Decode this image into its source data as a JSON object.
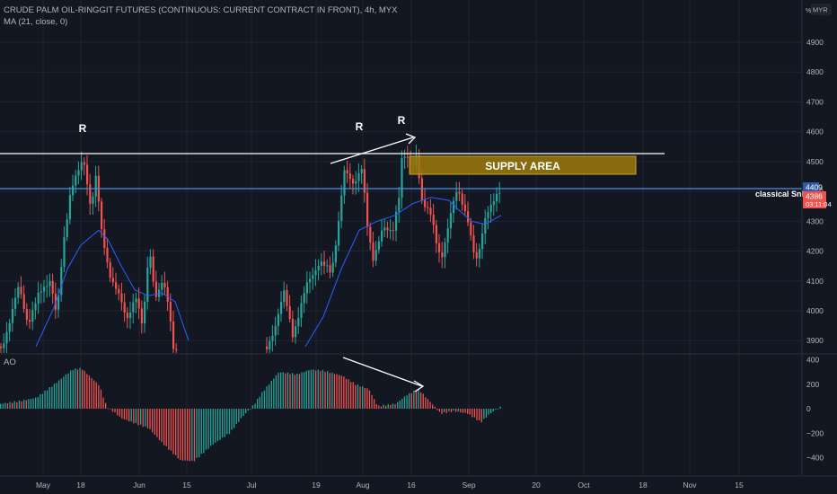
{
  "header": {
    "title": "CRUDE PALM OIL-RINGGIT FUTURES (CONTINUOUS: CURRENT CONTRACT IN FRONT), 4h, MYX",
    "indicator": "MA (21, close, 0)",
    "currency": "MYR",
    "scale_mark": "%"
  },
  "ao_label": "AO",
  "price_axis": {
    "ticks": [
      "4900",
      "4800",
      "4700",
      "4600",
      "4500",
      "4400",
      "4300",
      "4200",
      "4100",
      "4000",
      "3900"
    ]
  },
  "ao_axis": {
    "ticks": [
      "400",
      "200",
      "0",
      "−200",
      "−400"
    ]
  },
  "time_axis": {
    "ticks": [
      "May",
      "18",
      "Jun",
      "15",
      "Jul",
      "19",
      "Aug",
      "16",
      "Sep",
      "20",
      "Oct",
      "18",
      "Nov",
      "15"
    ]
  },
  "price_tags": {
    "line_level": "4409",
    "last_price": "4386",
    "countdown": "03:11:04"
  },
  "annotations": {
    "r_labels": [
      "R",
      "R",
      "R"
    ],
    "supply_area": "SUPPLY AREA",
    "classical_snr": "classical SnR"
  },
  "colors": {
    "up": "#26a69a",
    "down": "#ef5350",
    "ma": "#2962ff",
    "bg": "#131722",
    "supply": "#9c7a0a",
    "snr_line": "#4a90e2",
    "resistance_line": "#ffffff"
  },
  "chart_data": {
    "type": "candlestick",
    "timeframe": "4h",
    "symbol": "CRUDE PALM OIL-RINGGIT FUTURES",
    "price_range": [
      3850,
      5000
    ],
    "ao_range": [
      -480,
      420
    ],
    "price_path": [
      [
        0,
        3870
      ],
      [
        8,
        3950
      ],
      [
        20,
        4080
      ],
      [
        30,
        3960
      ],
      [
        42,
        4050
      ],
      [
        55,
        4110
      ],
      [
        62,
        3980
      ],
      [
        70,
        4230
      ],
      [
        78,
        4420
      ],
      [
        92,
        4500
      ],
      [
        100,
        4350
      ],
      [
        106,
        4460
      ],
      [
        112,
        4260
      ],
      [
        120,
        4130
      ],
      [
        130,
        4070
      ],
      [
        140,
        3960
      ],
      [
        150,
        4060
      ],
      [
        158,
        3940
      ],
      [
        165,
        4210
      ],
      [
        172,
        4050
      ],
      [
        180,
        4100
      ],
      [
        186,
        4020
      ],
      [
        192,
        3880
      ],
      [
        196,
        3870
      ],
      [
        296,
        3870
      ],
      [
        305,
        3950
      ],
      [
        315,
        4060
      ],
      [
        325,
        3920
      ],
      [
        340,
        4080
      ],
      [
        355,
        4170
      ],
      [
        368,
        4120
      ],
      [
        375,
        4280
      ],
      [
        382,
        4470
      ],
      [
        392,
        4420
      ],
      [
        402,
        4490
      ],
      [
        408,
        4280
      ],
      [
        414,
        4160
      ],
      [
        425,
        4290
      ],
      [
        436,
        4250
      ],
      [
        443,
        4380
      ],
      [
        447,
        4540
      ],
      [
        453,
        4510
      ],
      [
        458,
        4470
      ],
      [
        463,
        4520
      ],
      [
        468,
        4380
      ],
      [
        478,
        4330
      ],
      [
        485,
        4220
      ],
      [
        490,
        4170
      ],
      [
        496,
        4260
      ],
      [
        500,
        4320
      ],
      [
        508,
        4400
      ],
      [
        514,
        4360
      ],
      [
        520,
        4310
      ],
      [
        526,
        4200
      ],
      [
        530,
        4160
      ],
      [
        534,
        4220
      ],
      [
        540,
        4330
      ],
      [
        546,
        4360
      ],
      [
        552,
        4380
      ],
      [
        558,
        4400
      ]
    ],
    "moving_average": [
      [
        40,
        3880
      ],
      [
        60,
        4010
      ],
      [
        75,
        4140
      ],
      [
        90,
        4220
      ],
      [
        110,
        4270
      ],
      [
        120,
        4240
      ],
      [
        135,
        4150
      ],
      [
        150,
        4070
      ],
      [
        165,
        4050
      ],
      [
        180,
        4060
      ],
      [
        195,
        4030
      ],
      [
        210,
        3900
      ],
      [
        340,
        3880
      ],
      [
        360,
        3980
      ],
      [
        380,
        4140
      ],
      [
        400,
        4270
      ],
      [
        420,
        4300
      ],
      [
        440,
        4320
      ],
      [
        460,
        4360
      ],
      [
        480,
        4380
      ],
      [
        500,
        4370
      ],
      [
        510,
        4340
      ],
      [
        525,
        4300
      ],
      [
        540,
        4290
      ],
      [
        558,
        4320
      ]
    ],
    "ao_path": [
      [
        0,
        40
      ],
      [
        20,
        60
      ],
      [
        40,
        90
      ],
      [
        60,
        200
      ],
      [
        80,
        320
      ],
      [
        90,
        330
      ],
      [
        110,
        190
      ],
      [
        118,
        20
      ],
      [
        135,
        -80
      ],
      [
        150,
        -120
      ],
      [
        165,
        -160
      ],
      [
        180,
        -280
      ],
      [
        200,
        -420
      ],
      [
        215,
        -430
      ],
      [
        235,
        -300
      ],
      [
        255,
        -200
      ],
      [
        270,
        -60
      ],
      [
        283,
        40
      ],
      [
        290,
        120
      ],
      [
        310,
        300
      ],
      [
        330,
        280
      ],
      [
        345,
        320
      ],
      [
        360,
        310
      ],
      [
        380,
        270
      ],
      [
        395,
        200
      ],
      [
        410,
        160
      ],
      [
        420,
        20
      ],
      [
        440,
        40
      ],
      [
        452,
        110
      ],
      [
        465,
        160
      ],
      [
        478,
        60
      ],
      [
        490,
        -40
      ],
      [
        505,
        -20
      ],
      [
        520,
        -40
      ],
      [
        535,
        -110
      ],
      [
        545,
        -40
      ],
      [
        558,
        20
      ]
    ],
    "lines": [
      {
        "name": "resistance",
        "price": 4527
      },
      {
        "name": "classical SnR",
        "price": 4409
      }
    ],
    "supply_area": {
      "price_low": 4458,
      "price_high": 4516
    }
  }
}
